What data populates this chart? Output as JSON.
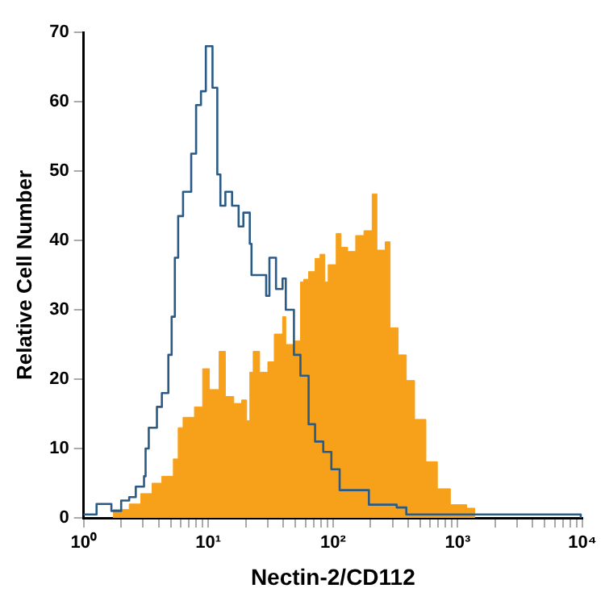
{
  "chart_data": {
    "type": "step",
    "xlabel": "Nectin-2/CD112",
    "ylabel": "Relative Cell Number",
    "log": "x",
    "grid": false,
    "legend": false,
    "marker": "none",
    "xlim": [
      1,
      10000
    ],
    "ylim": [
      0,
      70
    ],
    "xticks": [
      {
        "value": 1,
        "label": "10⁰"
      },
      {
        "value": 2,
        "label": null
      },
      {
        "value": 3,
        "label": null
      },
      {
        "value": 4,
        "label": null
      },
      {
        "value": 5,
        "label": null
      },
      {
        "value": 6,
        "label": null
      },
      {
        "value": 7,
        "label": null
      },
      {
        "value": 8,
        "label": null
      },
      {
        "value": 9,
        "label": null
      },
      {
        "value": 10,
        "label": "10¹"
      },
      {
        "value": 20,
        "label": null
      },
      {
        "value": 30,
        "label": null
      },
      {
        "value": 40,
        "label": null
      },
      {
        "value": 50,
        "label": null
      },
      {
        "value": 60,
        "label": null
      },
      {
        "value": 70,
        "label": null
      },
      {
        "value": 80,
        "label": null
      },
      {
        "value": 90,
        "label": null
      },
      {
        "value": 100,
        "label": "10²"
      },
      {
        "value": 200,
        "label": null
      },
      {
        "value": 300,
        "label": null
      },
      {
        "value": 400,
        "label": null
      },
      {
        "value": 500,
        "label": null
      },
      {
        "value": 600,
        "label": null
      },
      {
        "value": 700,
        "label": null
      },
      {
        "value": 800,
        "label": null
      },
      {
        "value": 900,
        "label": null
      },
      {
        "value": 1000,
        "label": "10³"
      },
      {
        "value": 2000,
        "label": null
      },
      {
        "value": 3000,
        "label": null
      },
      {
        "value": 4000,
        "label": null
      },
      {
        "value": 5000,
        "label": null
      },
      {
        "value": 6000,
        "label": null
      },
      {
        "value": 7000,
        "label": null
      },
      {
        "value": 8000,
        "label": null
      },
      {
        "value": 9000,
        "label": null
      },
      {
        "value": 10000,
        "label": "10⁴"
      }
    ],
    "yticks": [
      0,
      10,
      20,
      30,
      40,
      50,
      60,
      70
    ],
    "series": [
      {
        "type": "area",
        "color": "#f7a11a",
        "x": [
          1.72,
          2.32,
          2.87,
          3.54,
          4.24,
          5.24,
          5.73,
          6.27,
          7.74,
          9.0,
          10.2,
          12.2,
          13.7,
          16.0,
          18.5,
          20.3,
          21.5,
          22.9,
          25.8,
          30.0,
          33.8,
          39.4,
          41.8,
          48.6,
          54.8,
          58.2,
          63.7,
          71.8,
          78.6,
          86.0,
          91.4,
          106,
          116,
          131,
          152,
          177,
          206,
          225,
          262,
          287,
          333,
          387,
          451,
          556,
          687,
          873,
          1180,
          1370
        ],
        "values": [
          1.2,
          2,
          3.5,
          5,
          6,
          8.5,
          13,
          14.5,
          16,
          21.5,
          18.5,
          24,
          17.5,
          16.5,
          17,
          14,
          21,
          24,
          21,
          22.5,
          26.5,
          29,
          25,
          25.5,
          34,
          34.4,
          35.5,
          37.4,
          38,
          34,
          36.5,
          41,
          39,
          38.4,
          40.7,
          41.4,
          46.7,
          38.6,
          39.8,
          27.4,
          23.5,
          19.8,
          14.2,
          8.1,
          4.2,
          1.9,
          1.4,
          0
        ]
      },
      {
        "type": "step",
        "color": "#2b5a85",
        "x": [
          1.0,
          1.27,
          1.67,
          2.0,
          2.32,
          2.62,
          3.05,
          3.14,
          3.33,
          3.87,
          4.24,
          4.78,
          5.08,
          5.39,
          5.73,
          6.27,
          7.29,
          7.98,
          8.73,
          9.55,
          10.8,
          11.8,
          12.5,
          13.7,
          15.5,
          17.5,
          19.1,
          21.5,
          22.2,
          29.1,
          30.9,
          34.9,
          39.4,
          41.8,
          48.6,
          54.8,
          63.7,
          71.8,
          83.5,
          97,
          113,
          194,
          324,
          387,
          9700
        ],
        "values": [
          0.5,
          2,
          1,
          2.5,
          3,
          4.5,
          6,
          10,
          13,
          16,
          18,
          23.5,
          29,
          37.5,
          43.5,
          47,
          52.5,
          59.5,
          61.5,
          68,
          62,
          49.5,
          45,
          47,
          45,
          42,
          44,
          39.5,
          35,
          32,
          37.5,
          33,
          34.5,
          30,
          23.5,
          20.5,
          13.5,
          11,
          9.5,
          7,
          4,
          1.9,
          1.5,
          0.5,
          0
        ]
      }
    ]
  }
}
